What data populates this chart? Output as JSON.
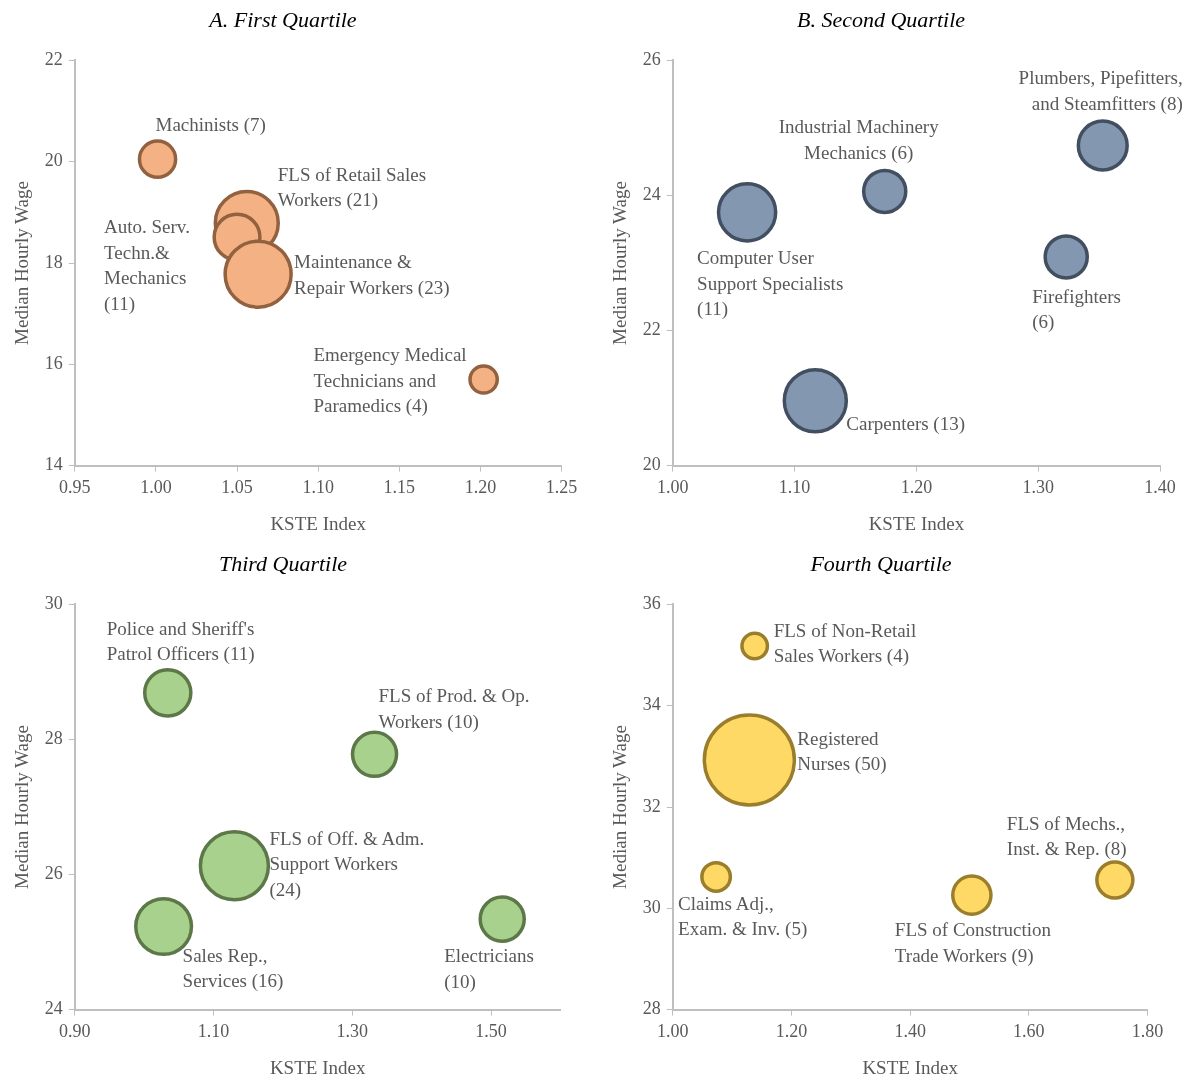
{
  "chart_data": [
    {
      "type": "bubble",
      "title": "A. First Quartile",
      "xlabel": "KSTE Index",
      "ylabel": "Median Hourly Wage",
      "xlim": [
        0.95,
        1.25
      ],
      "xticks": [
        0.95,
        {
          "value": 1.0,
          "label": "1.00"
        },
        1.05,
        {
          "value": 1.1,
          "label": "1.10"
        },
        1.15,
        {
          "value": 1.2,
          "label": "1.20"
        },
        1.25
      ],
      "ylim": [
        14,
        22
      ],
      "yticks": [
        14,
        16,
        18,
        20,
        22
      ],
      "grid": false,
      "legend": false,
      "series": [
        {
          "color": "#f4b183",
          "x": [
            1.001,
            1.056,
            1.05,
            1.063,
            1.202
          ],
          "values": [
            20.05,
            18.79,
            18.51,
            17.78,
            15.7
          ],
          "sizes": [
            0.3,
            0.91,
            0.48,
            1,
            0.17
          ]
        }
      ],
      "annotations": [
        {
          "text": "Machinists (7)",
          "x": 1.001,
          "y": 20.05
        },
        {
          "text": "FLS of Retail Sales\nWorkers (21)",
          "x": 1.056,
          "y": 18.79
        },
        {
          "text": "Auto. Serv.\nTechn.&\nMechanics\n(11)",
          "x": 1.05,
          "y": 18.51
        },
        {
          "text": "Maintenance &\nRepair Workers (23)",
          "x": 1.063,
          "y": 17.78
        },
        {
          "text": "Emergency Medical\nTechnicians and\nParamedics (4)",
          "x": 1.202,
          "y": 15.7
        }
      ]
    },
    {
      "type": "bubble",
      "title": "B. Second Quartile",
      "xlabel": "KSTE Index",
      "ylabel": "Median Hourly Wage",
      "xlim": [
        1.0,
        1.4
      ],
      "xticks": [
        {
          "value": 1.0,
          "label": "1.00"
        },
        {
          "value": 1.1,
          "label": "1.10"
        },
        {
          "value": 1.2,
          "label": "1.20"
        },
        {
          "value": 1.3,
          "label": "1.30"
        },
        {
          "value": 1.4,
          "label": "1.40"
        }
      ],
      "ylim": [
        20,
        26
      ],
      "yticks": [
        20,
        22,
        24,
        26
      ],
      "grid": false,
      "legend": false,
      "series": [
        {
          "color": "#8497b0",
          "x": [
            1.353,
            1.174,
            1.061,
            1.323,
            1.117
          ],
          "values": [
            24.74,
            24.06,
            23.75,
            23.09,
            20.96
          ],
          "sizes": [
            0.62,
            0.46,
            0.85,
            0.46,
            1
          ]
        }
      ],
      "annotations": [
        {
          "text": "Plumbers, Pipefitters,\nand Steamfitters (8)",
          "x": 1.353,
          "y": 24.74
        },
        {
          "text": "Industrial Machinery\nMechanics (6)",
          "x": 1.174,
          "y": 24.06
        },
        {
          "text": "Computer User\nSupport Specialists\n(11)",
          "x": 1.061,
          "y": 23.75
        },
        {
          "text": "Firefighters\n(6)",
          "x": 1.323,
          "y": 23.09
        },
        {
          "text": "Carpenters (13)",
          "x": 1.117,
          "y": 20.96
        }
      ]
    },
    {
      "type": "bubble",
      "title": "Third Quartile",
      "xlabel": "KSTE Index",
      "ylabel": "Median Hourly Wage",
      "xlim": [
        0.9,
        1.6
      ],
      "xticks": [
        {
          "value": 0.9,
          "label": "0.90"
        },
        {
          "value": 1.1,
          "label": "1.10"
        },
        {
          "value": 1.3,
          "label": "1.30"
        },
        {
          "value": 1.5,
          "label": "1.50"
        }
      ],
      "ylim": [
        24,
        30
      ],
      "yticks": [
        24,
        26,
        28,
        30
      ],
      "grid": false,
      "legend": false,
      "series": [
        {
          "color": "#a9d18e",
          "x": [
            1.034,
            1.332,
            1.13,
            1.028,
            1.516
          ],
          "values": [
            28.69,
            27.78,
            26.13,
            25.23,
            25.34
          ],
          "sizes": [
            0.46,
            0.42,
            1,
            0.67,
            0.42
          ]
        }
      ],
      "annotations": [
        {
          "text": "Police and Sheriff's\nPatrol Officers (11)",
          "x": 1.034,
          "y": 28.69
        },
        {
          "text": "FLS of Prod. & Op.\nWorkers (10)",
          "x": 1.332,
          "y": 27.78
        },
        {
          "text": "FLS of Off. & Adm.\nSupport Workers\n(24)",
          "x": 1.13,
          "y": 26.13
        },
        {
          "text": "Sales Rep.,\nServices (16)",
          "x": 1.028,
          "y": 25.23
        },
        {
          "text": "Electricians\n(10)",
          "x": 1.516,
          "y": 25.34
        }
      ]
    },
    {
      "type": "bubble",
      "title": "Fourth Quartile",
      "xlabel": "KSTE Index",
      "ylabel": "Median Hourly Wage",
      "xlim": [
        1.0,
        1.8
      ],
      "xticks": [
        {
          "value": 1.0,
          "label": "1.00"
        },
        {
          "value": 1.2,
          "label": "1.20"
        },
        {
          "value": 1.4,
          "label": "1.40"
        },
        {
          "value": 1.6,
          "label": "1.60"
        },
        {
          "value": 1.8,
          "label": "1.80"
        }
      ],
      "ylim": [
        28,
        36
      ],
      "yticks": [
        28,
        30,
        32,
        34,
        36
      ],
      "grid": false,
      "legend": false,
      "series": [
        {
          "color": "#ffd966",
          "x": [
            1.138,
            1.129,
            1.073,
            1.504,
            1.745
          ],
          "values": [
            35.18,
            32.93,
            30.62,
            30.26,
            30.56
          ],
          "sizes": [
            0.08,
            1,
            0.1,
            0.18,
            0.16
          ]
        }
      ],
      "annotations": [
        {
          "text": "FLS of Non-Retail\nSales Workers (4)",
          "x": 1.138,
          "y": 35.18
        },
        {
          "text": "Registered\nNurses (50)",
          "x": 1.129,
          "y": 32.93
        },
        {
          "text": "Claims Adj.,\nExam. & Inv. (5)",
          "x": 1.073,
          "y": 30.62
        },
        {
          "text": "FLS of Construction\nTrade Workers (9)",
          "x": 1.504,
          "y": 30.26
        },
        {
          "text": "FLS of Mechs.,\nInst. & Rep. (8)",
          "x": 1.745,
          "y": 30.56
        }
      ]
    }
  ]
}
